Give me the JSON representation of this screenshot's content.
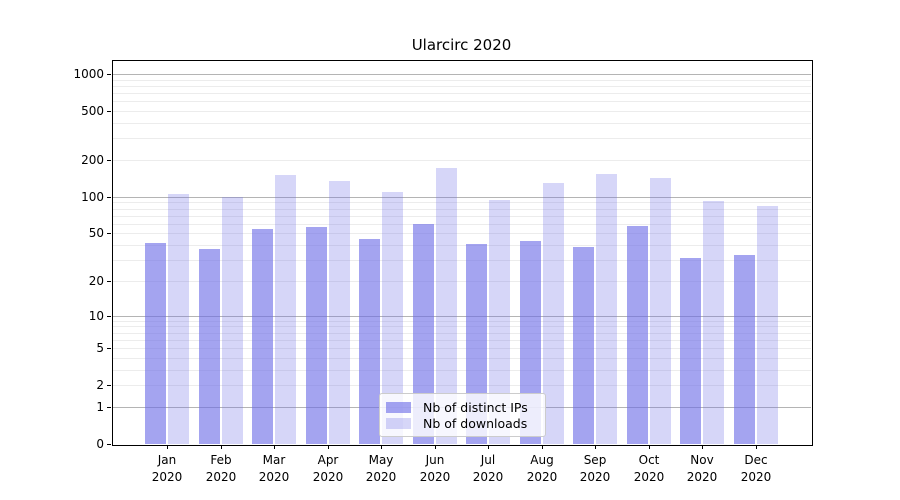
{
  "chart_data": {
    "type": "bar",
    "title": "Ularcirc 2020",
    "categories": [
      "Jan 2020",
      "Feb 2020",
      "Mar 2020",
      "Apr 2020",
      "May 2020",
      "Jun 2020",
      "Jul 2020",
      "Aug 2020",
      "Sep 2020",
      "Oct 2020",
      "Nov 2020",
      "Dec 2020"
    ],
    "series": [
      {
        "name": "Nb of distinct IPs",
        "color": "rgba(108,108,230,0.62)",
        "values": [
          42,
          37,
          54,
          57,
          45,
          60,
          41,
          43,
          39,
          58,
          31,
          33
        ]
      },
      {
        "name": "Nb of downloads",
        "color": "rgba(108,108,230,0.28)",
        "values": [
          105,
          100,
          152,
          135,
          110,
          172,
          94,
          130,
          154,
          143,
          93,
          84
        ]
      }
    ],
    "xlabel": "",
    "ylabel": "",
    "yscale": "log1p",
    "ylim": [
      0,
      1300
    ],
    "yticks": [
      0,
      1,
      2,
      5,
      10,
      20,
      50,
      100,
      200,
      500,
      1000
    ],
    "grid": "both",
    "legend_position": "lower center",
    "colors": {
      "bar_dark_on_white": "#a5a5f0",
      "bar_light_on_white": "#d7d7f8",
      "major_grid": "#b4b4b4",
      "minor_grid": "#ececec",
      "spine": "#000000"
    }
  }
}
